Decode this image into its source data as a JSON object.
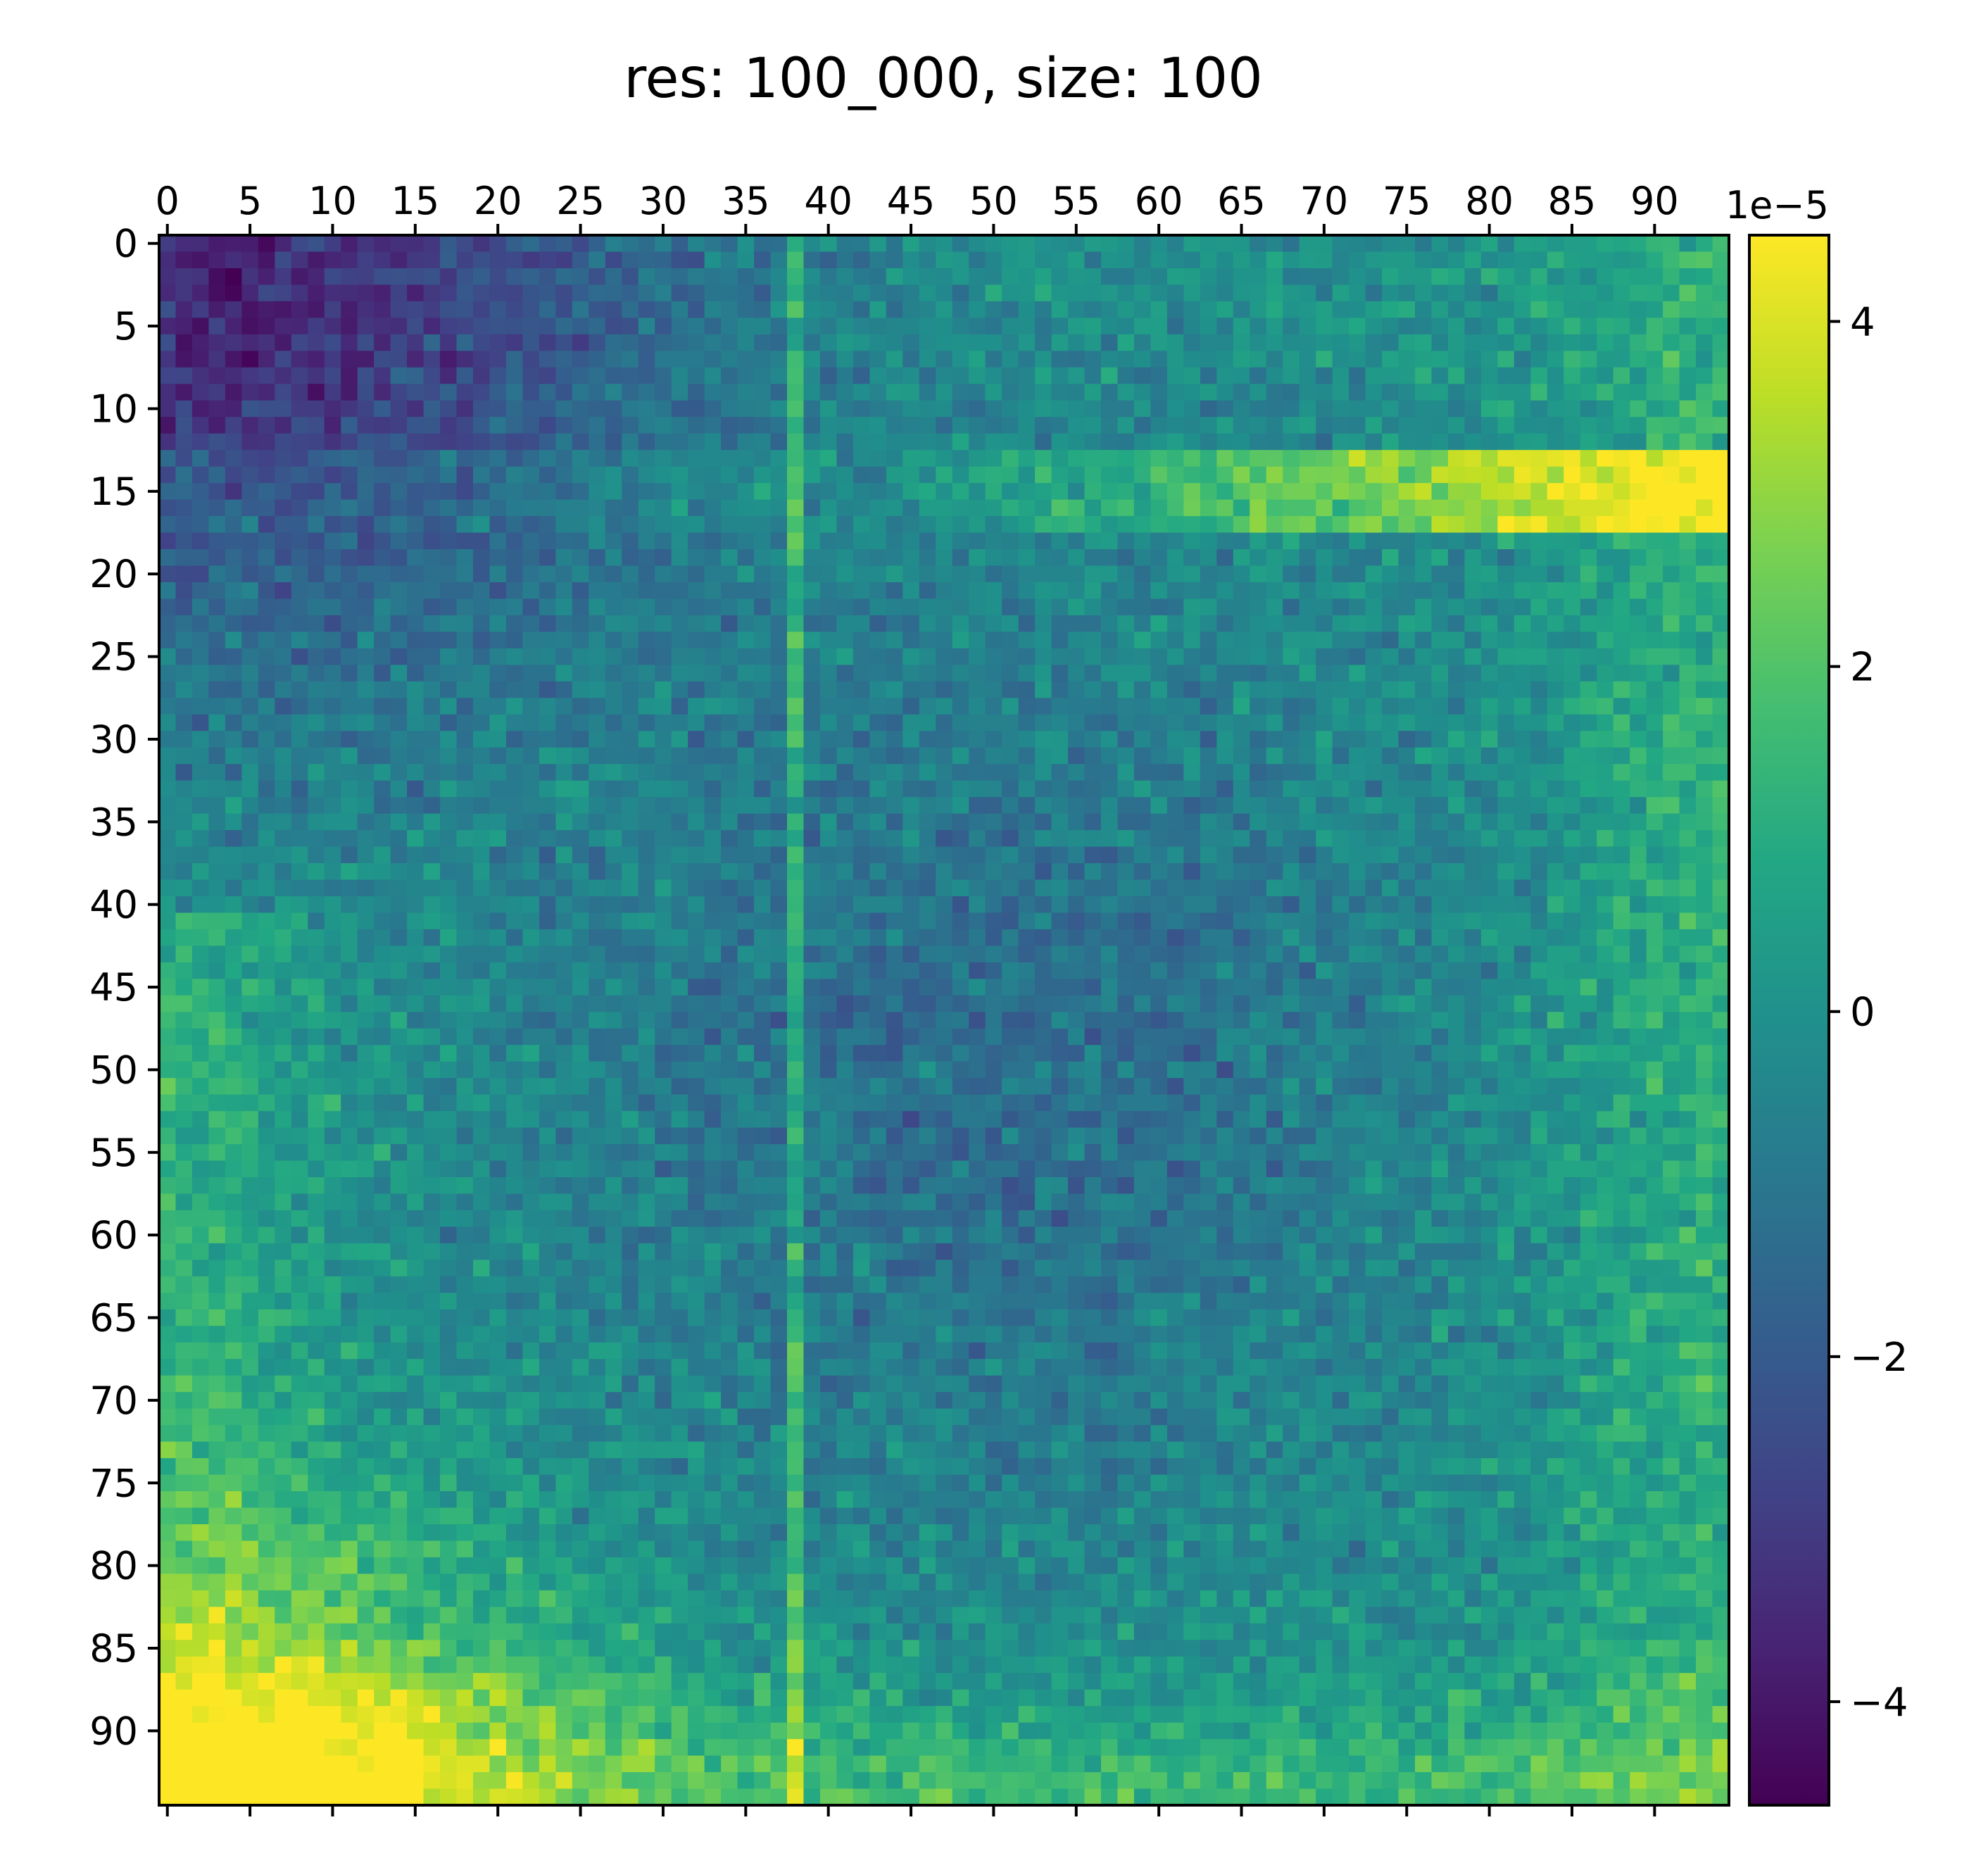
{
  "chart_data": {
    "type": "heatmap",
    "title": "res: 100_000, size: 100",
    "colormap": "viridis",
    "x_ticks": [
      "0",
      "5",
      "10",
      "15",
      "20",
      "25",
      "30",
      "35",
      "40",
      "45",
      "50",
      "55",
      "60",
      "65",
      "70",
      "75",
      "80",
      "85",
      "90"
    ],
    "y_ticks": [
      "0",
      "5",
      "10",
      "15",
      "20",
      "25",
      "30",
      "35",
      "40",
      "45",
      "50",
      "55",
      "60",
      "65",
      "70",
      "75",
      "80",
      "85",
      "90"
    ],
    "x_tick_values": [
      0,
      5,
      10,
      15,
      20,
      25,
      30,
      35,
      40,
      45,
      50,
      55,
      60,
      65,
      70,
      75,
      80,
      85,
      90
    ],
    "y_tick_values": [
      0,
      5,
      10,
      15,
      20,
      25,
      30,
      35,
      40,
      45,
      50,
      55,
      60,
      65,
      70,
      75,
      80,
      85,
      90
    ],
    "x_axis_position": "top",
    "grid_size": [
      95,
      95
    ],
    "colorbar": {
      "position": "right",
      "exponent_label": "1e−5",
      "ticks": [
        "−4",
        "−2",
        "0",
        "2",
        "4"
      ],
      "tick_values": [
        -4,
        -2,
        0,
        2,
        4
      ],
      "range": [
        -4.6,
        4.5
      ]
    },
    "value_range": [
      -4.6,
      4.5
    ],
    "value_units": "1e-5",
    "regions": [
      {
        "description": "dark low values top-left",
        "row_range": [
          0,
          12
        ],
        "col_range": [
          0,
          22
        ],
        "approx_value": -3.5
      },
      {
        "description": "bright band near row 14-17 right side",
        "row_range": [
          13,
          17
        ],
        "col_range": [
          60,
          94
        ],
        "approx_value": 3.5
      },
      {
        "description": "bright high values bottom-left",
        "row_range": [
          78,
          94
        ],
        "col_range": [
          0,
          20
        ],
        "approx_value": 3.5
      },
      {
        "description": "vertical bright stripe at column 38",
        "col": 38,
        "approx_value": 2.5
      }
    ]
  }
}
